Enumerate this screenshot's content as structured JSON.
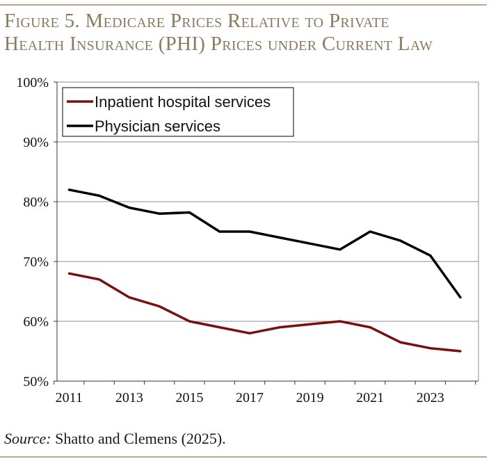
{
  "figure": {
    "title_line1": "Figure 5. Medicare Prices Relative to Private",
    "title_line2": "Health Insurance (PHI) Prices under Current Law",
    "source_label": "Source:",
    "source_text": " Shatto and Clemens (2025)."
  },
  "colors": {
    "title": "#8b7a5e",
    "rule": "#b8a98e",
    "inpatient": "#7a0f0f",
    "physician": "#000000",
    "grid": "#8c8c8c"
  },
  "chart_data": {
    "type": "line",
    "title": "Medicare Prices Relative to Private Health Insurance (PHI) Prices under Current Law",
    "xlabel": "",
    "ylabel": "",
    "x": [
      2011,
      2012,
      2013,
      2014,
      2015,
      2016,
      2017,
      2018,
      2019,
      2020,
      2021,
      2022,
      2023,
      2024
    ],
    "xlim": [
      2010.6,
      2024.6
    ],
    "xticks": [
      2011,
      2013,
      2015,
      2017,
      2019,
      2021,
      2023
    ],
    "ylim": [
      50,
      100
    ],
    "yticks": [
      50,
      60,
      70,
      80,
      90,
      100
    ],
    "ytick_labels": [
      "50%",
      "60%",
      "70%",
      "80%",
      "90%",
      "100%"
    ],
    "grid": true,
    "legend_position": "top-left",
    "series": [
      {
        "name": "Inpatient hospital services",
        "color": "#7a0f0f",
        "values": [
          68,
          67,
          64,
          62.5,
          60,
          59,
          58,
          59,
          59.5,
          60,
          59,
          56.5,
          55.5,
          55
        ]
      },
      {
        "name": "Physician services",
        "color": "#000000",
        "values": [
          82,
          81,
          79,
          78,
          78.2,
          75,
          75,
          74,
          73,
          72,
          75,
          73.5,
          71,
          64
        ]
      }
    ]
  }
}
